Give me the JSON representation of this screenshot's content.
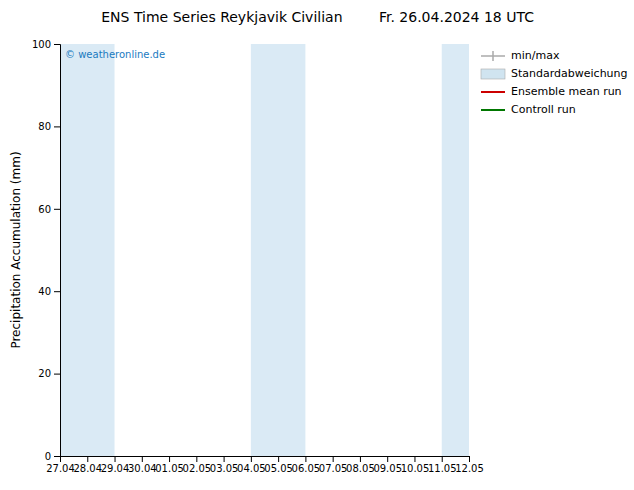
{
  "chart_data": {
    "type": "line",
    "title": "ENS Time Series Reykjavik Civilian",
    "subtitle": "Fr. 26.04.2024 18 UTC",
    "y_label": "Precipitation Accumulation (mm)",
    "categories": [
      "27.04",
      "28.04",
      "29.04",
      "30.04",
      "01.05",
      "02.05",
      "03.05",
      "04.05",
      "05.05",
      "06.05",
      "07.05",
      "08.05",
      "09.05",
      "10.05",
      "11.05",
      "12.05"
    ],
    "series": [
      {
        "name": "min/max",
        "type": "errorbar",
        "color": "#aaaaaa",
        "values": [
          null,
          null,
          null,
          null,
          null,
          null,
          null,
          null,
          null,
          null,
          null,
          null,
          null,
          null,
          null,
          null
        ]
      },
      {
        "name": "Standardabweichung",
        "type": "area",
        "color": "#d0e4f0",
        "values": [
          null,
          null,
          null,
          null,
          null,
          null,
          null,
          null,
          null,
          null,
          null,
          null,
          null,
          null,
          null,
          null
        ]
      },
      {
        "name": "Ensemble mean run",
        "type": "line",
        "color": "#cc0000",
        "values": [
          null,
          null,
          null,
          null,
          null,
          null,
          null,
          null,
          null,
          null,
          null,
          null,
          null,
          null,
          null,
          null
        ]
      },
      {
        "name": "Controll run",
        "type": "line",
        "color": "#007700",
        "values": [
          null,
          null,
          null,
          null,
          null,
          null,
          null,
          null,
          null,
          null,
          null,
          null,
          null,
          null,
          null,
          null
        ]
      }
    ],
    "ylim": [
      0,
      100
    ],
    "yticks": [
      0,
      20,
      40,
      60,
      80,
      100
    ],
    "grid": false,
    "legend": "upper right",
    "bands": {
      "color": "#daeaf5",
      "ranges": [
        [
          "27.04",
          "29.04"
        ],
        [
          "04.05",
          "06.05"
        ],
        [
          "11.05",
          "12.05"
        ]
      ]
    },
    "annotations": [
      {
        "text": "© weatheronline.de",
        "color": "#1a7abf"
      }
    ]
  }
}
